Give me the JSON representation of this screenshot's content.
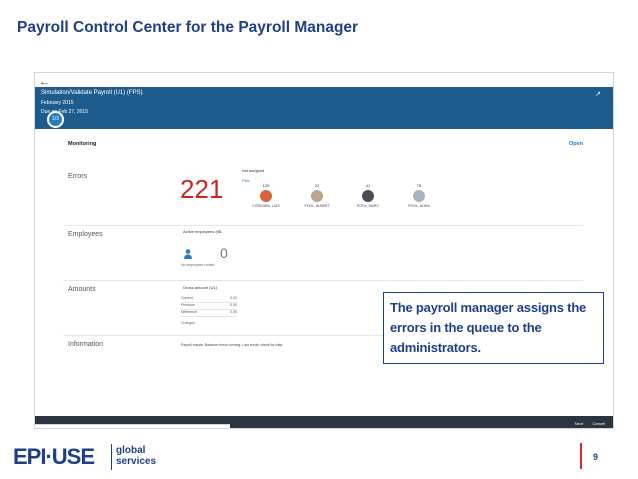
{
  "slide": {
    "title": "Payroll Control Center for the Payroll Manager",
    "page_number": "9",
    "callout": "The payroll manager assigns the errors in the queue to the administrators."
  },
  "app": {
    "header": {
      "title": "Simulation/Validate Payroll (U1) (FPS)",
      "period": "February 2015",
      "due": "Due on Feb 27, 2015",
      "step": "1/3"
    },
    "monitoring_label": "Monitoring",
    "open_label": "Open",
    "sections": {
      "errors": "Errors",
      "employees": "Employees",
      "amounts": "Amounts",
      "information": "Information"
    },
    "errors": {
      "count": "221",
      "assign_label": "Not assigned",
      "assign_link": "Pick",
      "people": [
        {
          "count": "125",
          "name": "CORDOBA, LUIS"
        },
        {
          "count": "22",
          "name": "POOL, ALBERT"
        },
        {
          "count": "41",
          "name": "POOL, MARC"
        },
        {
          "count": "78",
          "name": "POOL, ALINA"
        }
      ]
    },
    "employees": {
      "title": "Active employees (98...",
      "count": "0",
      "caption": "No employees locked"
    },
    "amounts": {
      "title": "Gross amount (U1)",
      "rows": [
        {
          "label": "Current",
          "value": "0.00"
        },
        {
          "label": "Previous",
          "value": "0.00"
        },
        {
          "label": "Difference",
          "value": "0.00"
        }
      ],
      "caption": "Changes"
    },
    "information": {
      "text": "Payroll results: Balance check running. Last result: check for data"
    },
    "footer": {
      "button1": "Next",
      "button2": "Cancel"
    }
  },
  "logo": {
    "brand": "EPI·USE",
    "line1": "global",
    "line2": "services"
  },
  "colors": {
    "title": "#1f3f86",
    "header": "#1f5c8e",
    "error": "#c62828",
    "accent": "#2a7bbd",
    "page_bar": "#d32f2f"
  }
}
